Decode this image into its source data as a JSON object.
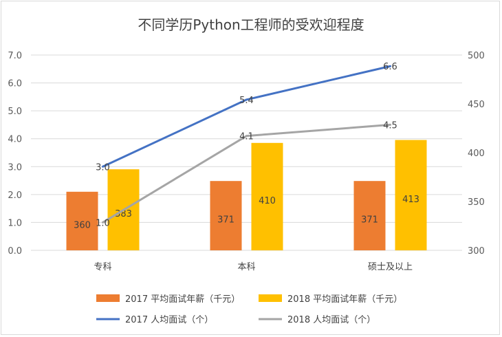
{
  "chart_data": {
    "type": "bar",
    "title": "不同学历Python工程师的受欢迎程度",
    "categories": [
      "专科",
      "本科",
      "硕士及以上"
    ],
    "bar_series": [
      {
        "name": "2017 平均面试年薪（千元）",
        "values": [
          360,
          371,
          371
        ],
        "color": "#ed7d31"
      },
      {
        "name": "2018 平均面试年薪（千元）",
        "values": [
          383,
          410,
          413
        ],
        "color": "#ffc000"
      }
    ],
    "line_series": [
      {
        "name": "2017 人均面试（个）",
        "values": [
          3.0,
          5.4,
          6.6
        ],
        "color": "#4472c4"
      },
      {
        "name": "2018 人均面试（个）",
        "values": [
          1.0,
          4.1,
          4.5
        ],
        "color": "#a5a5a5"
      }
    ],
    "y_left": {
      "min": 0,
      "max": 7,
      "step": 1,
      "ticks": [
        "0.0",
        "1.0",
        "2.0",
        "3.0",
        "4.0",
        "5.0",
        "6.0",
        "7.0"
      ]
    },
    "y_right": {
      "min": 300,
      "max": 500,
      "step": 50,
      "ticks": [
        "300",
        "350",
        "400",
        "450",
        "500"
      ]
    },
    "grid": true,
    "legend_position": "bottom"
  }
}
